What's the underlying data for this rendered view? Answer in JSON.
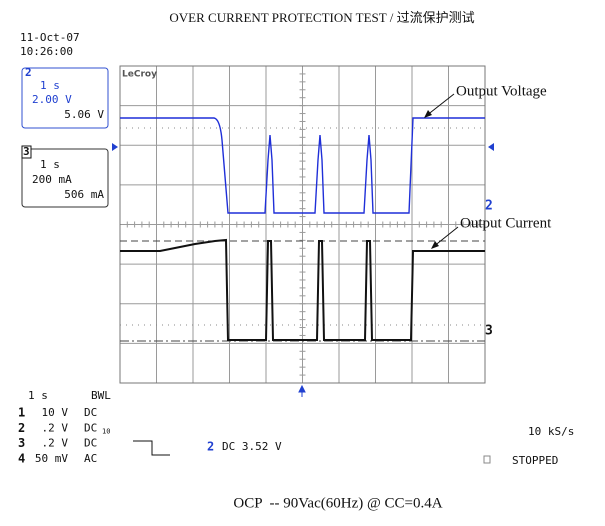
{
  "header": {
    "title": "OVER CURRENT PROTECTION TEST / 过流保护测试",
    "date": "11-Oct-07",
    "time": "10:26:00"
  },
  "channels": [
    {
      "id": "2",
      "timebase": "1 s",
      "scale": "2.00 V",
      "reading": "5.06 V"
    },
    {
      "id": "3",
      "timebase": "1 s",
      "scale": "200 mA",
      "reading": "506 mA"
    }
  ],
  "brand": "LeCroy",
  "annotations": [
    "Output Voltage",
    "Output Current"
  ],
  "markers": [
    "2",
    "3"
  ],
  "status": {
    "timebase": "1 s",
    "bandwidth": "BWL",
    "rows": [
      [
        "1",
        "10 V",
        "DC"
      ],
      [
        "2",
        ".2 V",
        "DC",
        "10"
      ],
      [
        "3",
        ".2 V",
        "DC"
      ],
      [
        "4",
        "50 mV",
        "AC"
      ]
    ],
    "trigger_channel": "2",
    "trigger": "DC 3.52 V",
    "rate": "10 kS/s",
    "state": "STOPPED"
  },
  "caption": "OCP  -- 90Vac(60Hz) @ CC=0.4A"
}
